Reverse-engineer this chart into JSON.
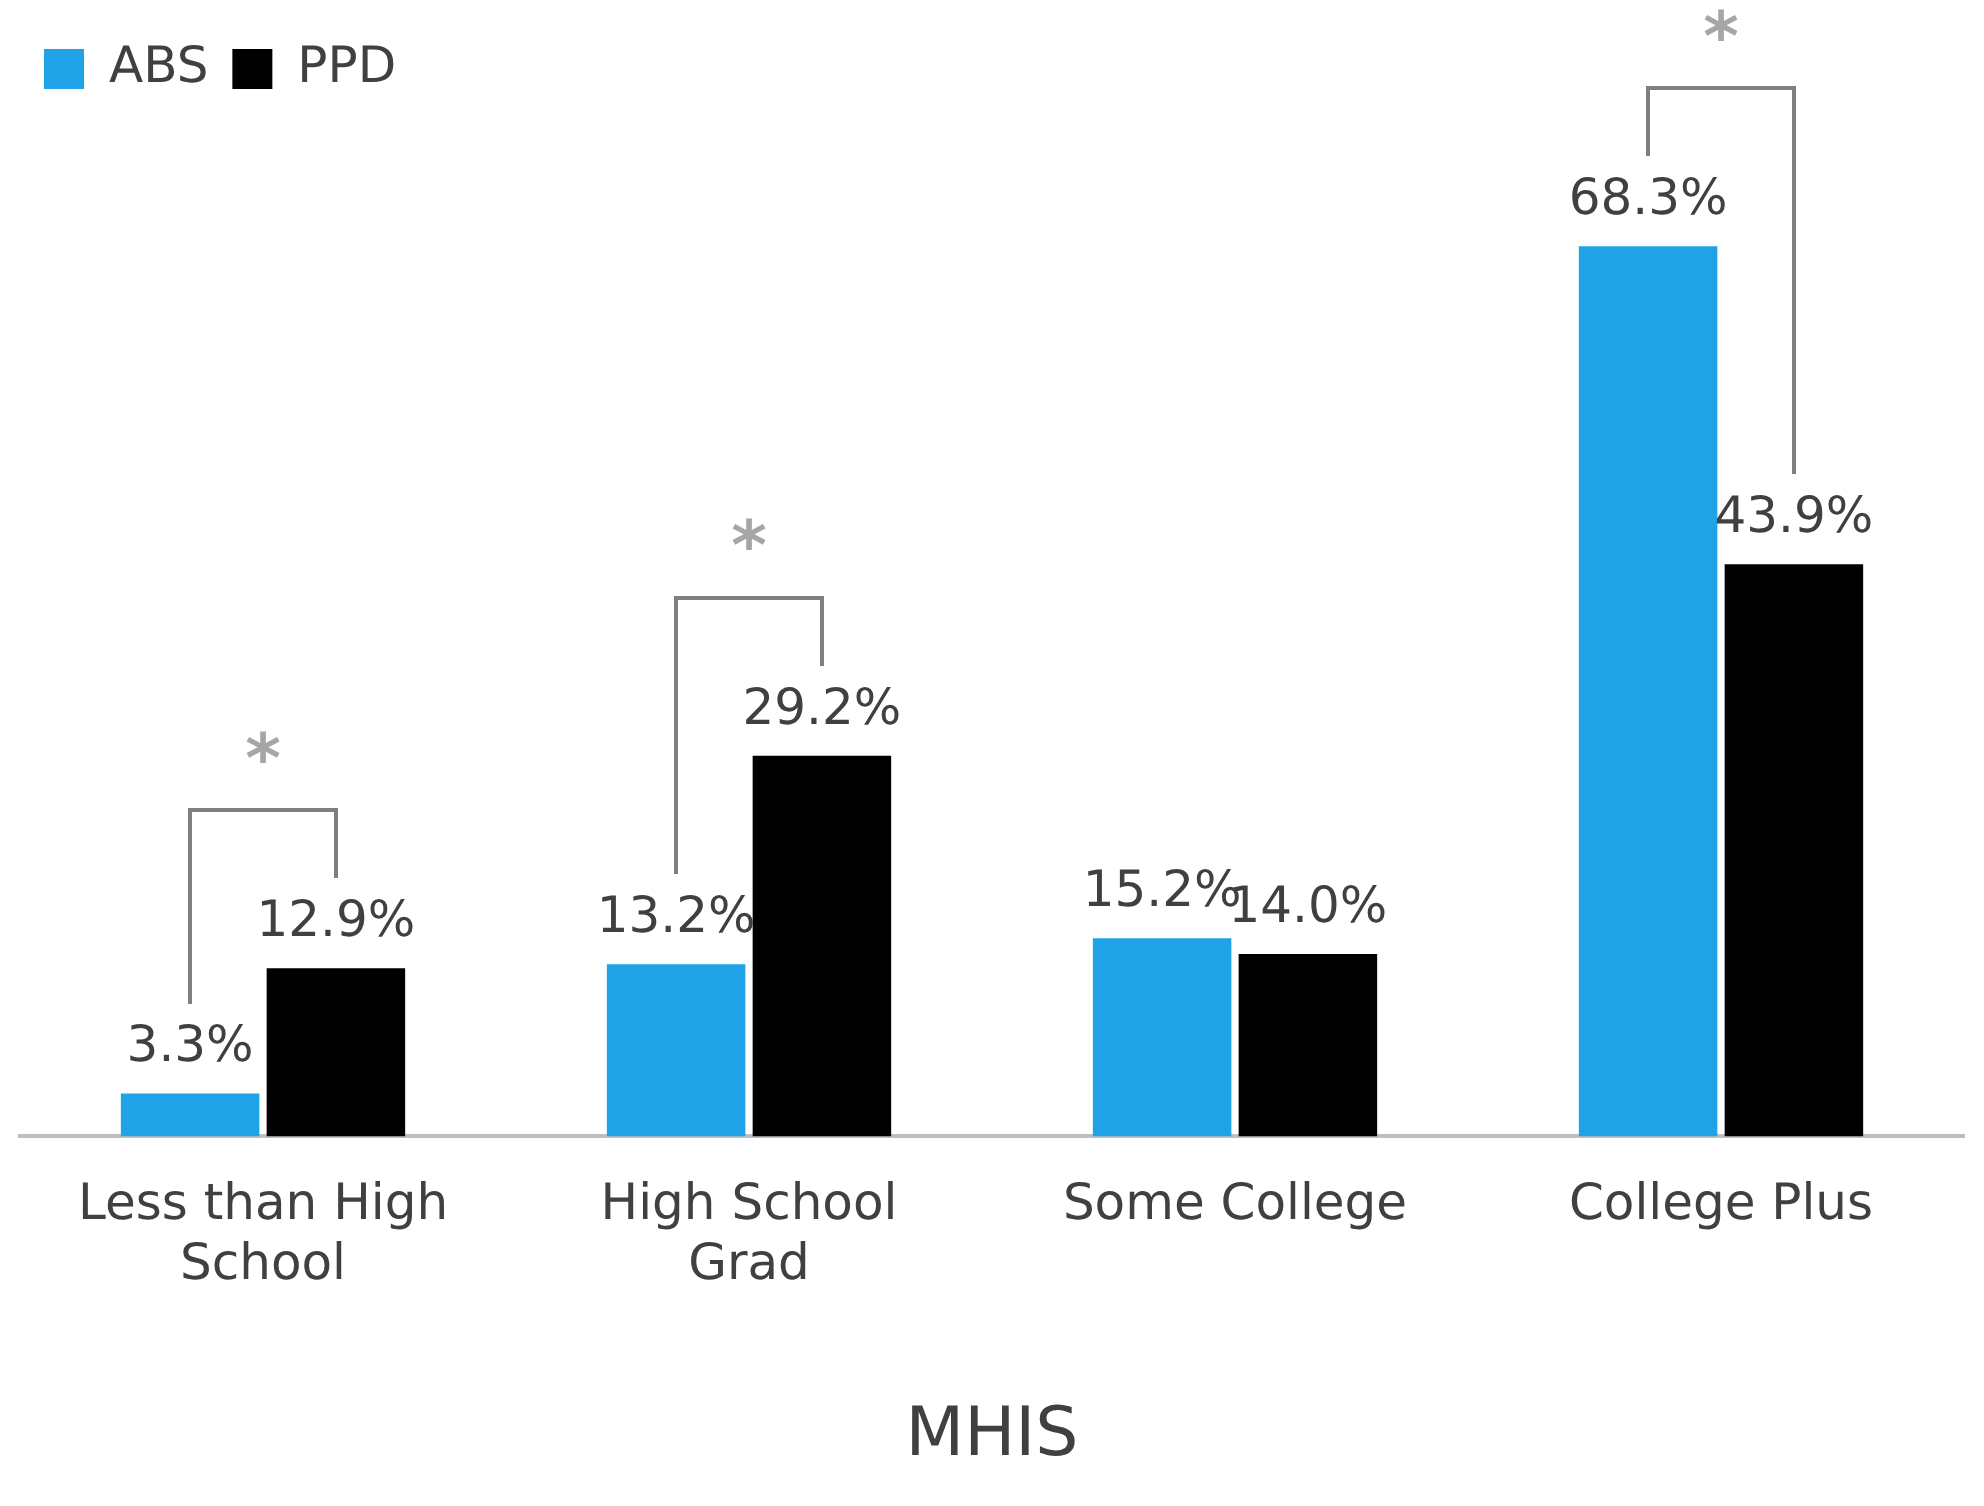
{
  "chart_data": {
    "type": "bar",
    "xlabel": "MHIS",
    "categories": [
      "Less than High School",
      "High School Grad",
      "Some College",
      "College Plus"
    ],
    "series": [
      {
        "name": "ABS",
        "color": "#1fa3e6",
        "values": [
          3.3,
          13.2,
          15.2,
          68.3
        ],
        "value_labels": [
          "3.3%",
          "13.2%",
          "15.2%",
          "68.3%"
        ]
      },
      {
        "name": "PPD",
        "color": "#000000",
        "values": [
          12.9,
          29.2,
          14.0,
          43.9
        ],
        "value_labels": [
          "12.9%",
          "29.2%",
          "14.0%",
          "43.9%"
        ]
      }
    ],
    "tick_labels": "x",
    "legend": "top left",
    "grid": false,
    "annotations": [
      "*",
      "*",
      "*"
    ]
  }
}
